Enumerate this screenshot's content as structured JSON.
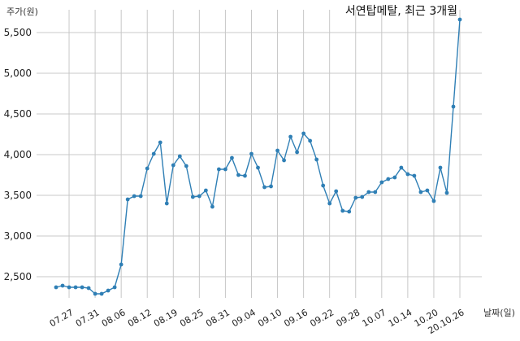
{
  "chart_data": {
    "type": "line",
    "title": "서연탑메탈, 최근 3개월",
    "ylabel": "주가(원)",
    "xlabel": "날짜(일)",
    "ylim": [
      2200,
      5800
    ],
    "yticks": [
      2500,
      3000,
      3500,
      4000,
      4500,
      5000,
      5500
    ],
    "ytick_labels": [
      "2,500",
      "3,000",
      "3,500",
      "4,000",
      "4,500",
      "5,000",
      "5,500"
    ],
    "xtick_labels": [
      "07.27",
      "07.31",
      "08.06",
      "08.12",
      "08.19",
      "08.25",
      "08.31",
      "09.04",
      "09.10",
      "09.16",
      "09.22",
      "09.28",
      "10.07",
      "10.14",
      "10.20",
      "20.10.26"
    ],
    "xtick_positions": [
      2,
      6,
      10,
      14,
      18,
      22,
      26,
      30,
      34,
      38,
      42,
      46,
      50,
      54,
      58,
      62
    ],
    "grid": true,
    "line_color": "#2f7fb5",
    "series": [
      {
        "values": [
          2370,
          2390,
          2370,
          2370,
          2370,
          2360,
          2290,
          2290,
          2330,
          2370,
          2650,
          3450,
          3490,
          3490,
          3830,
          4010,
          4150,
          3400,
          3870,
          3980,
          3860,
          3480,
          3490,
          3560,
          3360,
          3820,
          3820,
          3960,
          3750,
          3740,
          4010,
          3840,
          3600,
          3610,
          4050,
          3930,
          4220,
          4030,
          4260,
          4170,
          3940,
          3620,
          3400,
          3550,
          3310,
          3300,
          3470,
          3480,
          3540,
          3540,
          3660,
          3700,
          3720,
          3840,
          3760,
          3740,
          3540,
          3560,
          3430,
          3840,
          3530,
          4590,
          5660
        ]
      }
    ]
  }
}
